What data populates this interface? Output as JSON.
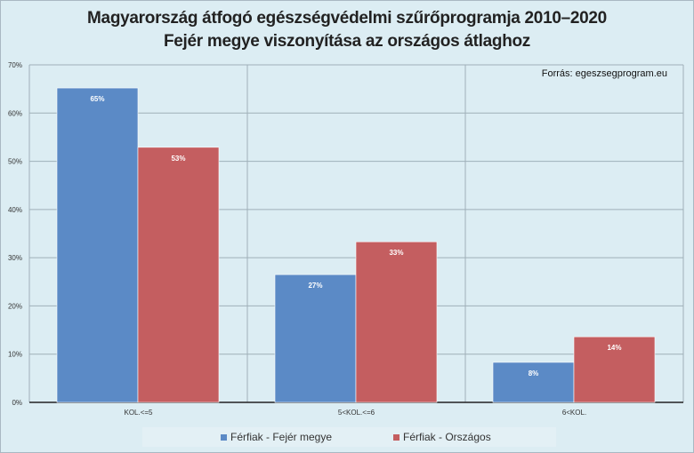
{
  "chart_data": {
    "type": "bar",
    "title": "Magyarország átfogó egészségvédelmi szűrőprogramja 2010–2020",
    "subtitle": "Fejér megye viszonyítása az országos átlaghoz",
    "annotation": "Forrás: egeszsegprogram.eu",
    "categories": [
      "KOL.<=5",
      "5<KOL.<=6",
      "6<KOL."
    ],
    "series": [
      {
        "name": "Férfiak - Fejér megye",
        "color": "#5b8ac6",
        "values": [
          65.2,
          26.5,
          8.3
        ],
        "labels": [
          "65%",
          "27%",
          "8%"
        ]
      },
      {
        "name": "Férfiak - Országos",
        "color": "#c45e60",
        "values": [
          52.9,
          33.3,
          13.6
        ],
        "labels": [
          "53%",
          "33%",
          "14%"
        ]
      }
    ],
    "ylim": [
      0,
      70
    ],
    "yticks": [
      0,
      10,
      20,
      30,
      40,
      50,
      60,
      70
    ],
    "ytick_labels": [
      "0%",
      "10%",
      "20%",
      "30%",
      "40%",
      "50%",
      "60%",
      "70%"
    ],
    "grid": true,
    "legend": "bottom"
  }
}
